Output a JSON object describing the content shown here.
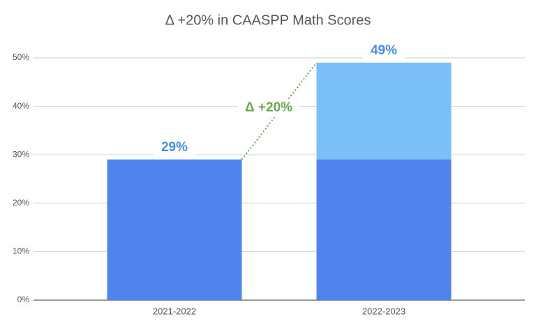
{
  "chart_data": {
    "type": "bar",
    "title": "Δ +20% in CAASPP Math Scores",
    "categories": [
      "2021-2022",
      "2022-2023"
    ],
    "overlap": true,
    "series": [
      {
        "color": "#7bbff8",
        "values": [
          29,
          49
        ],
        "value_labels": [
          "29%",
          "49%"
        ]
      },
      {
        "color": "#5083ec",
        "values": [
          29,
          29
        ]
      }
    ],
    "ylim": [
      0,
      50
    ],
    "yticks": [
      {
        "value": 0,
        "label": "0%"
      },
      {
        "value": 10,
        "label": "10%"
      },
      {
        "value": 20,
        "label": "20%"
      },
      {
        "value": 30,
        "label": "30%"
      },
      {
        "value": 40,
        "label": "40%"
      },
      {
        "value": 50,
        "label": "50%"
      }
    ],
    "grid": true,
    "annotation": {
      "text": "Δ +20%",
      "color": "#6aa84f"
    }
  }
}
